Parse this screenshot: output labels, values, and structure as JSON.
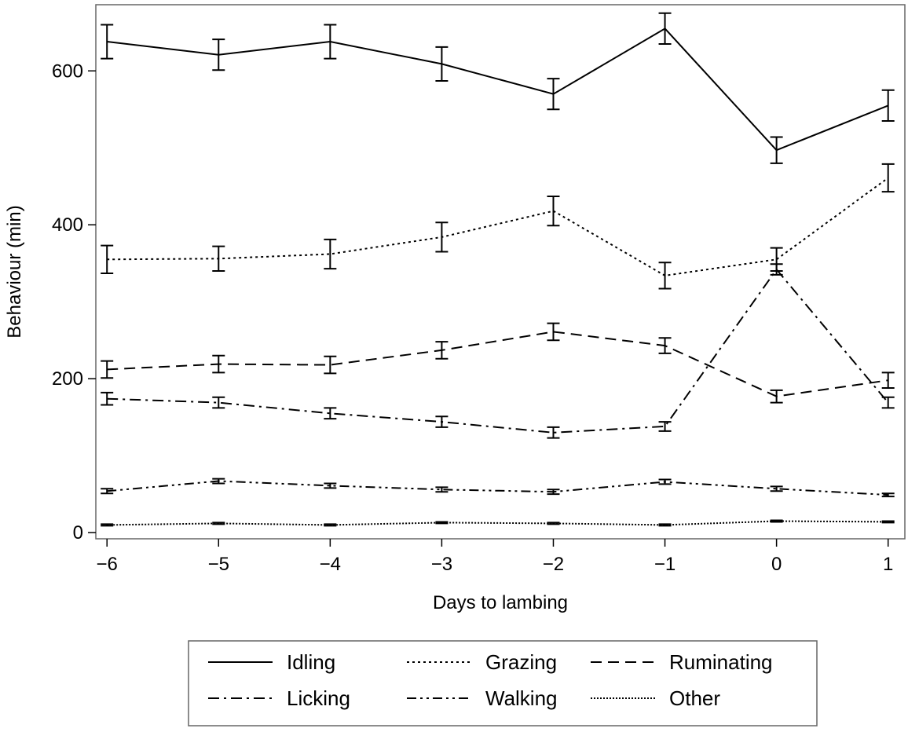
{
  "chart_data": {
    "type": "line",
    "xlabel": "Days to lambing",
    "ylabel": "Behaviour (min)",
    "x": [
      -6,
      -5,
      -4,
      -3,
      -2,
      -1,
      0,
      1
    ],
    "x_tick_labels": [
      "−6",
      "−5",
      "−4",
      "−3",
      "−2",
      "−1",
      "0",
      "1"
    ],
    "xlim": [
      -6.1,
      1.15
    ],
    "ylim": [
      -8,
      686
    ],
    "yticks": [
      0,
      200,
      400,
      600
    ],
    "grid": false,
    "legend_placement": "bottom",
    "series": [
      {
        "name": "Idling",
        "dash": "solid",
        "values": [
          638,
          621,
          638,
          609,
          570,
          655,
          497,
          555
        ],
        "err": [
          22,
          20,
          22,
          22,
          20,
          20,
          17,
          20
        ]
      },
      {
        "name": "Grazing",
        "dash": "dotted",
        "values": [
          355,
          356,
          362,
          384,
          418,
          334,
          355,
          461
        ],
        "err": [
          18,
          16,
          19,
          19,
          19,
          17,
          15,
          18
        ]
      },
      {
        "name": "Ruminating",
        "dash": "dashed",
        "values": [
          212,
          219,
          218,
          237,
          261,
          243,
          177,
          198
        ],
        "err": [
          11,
          11,
          11,
          11,
          11,
          10,
          8,
          10
        ]
      },
      {
        "name": "Licking",
        "dash": "dashdot",
        "values": [
          174,
          169,
          155,
          144,
          130,
          138,
          342,
          169
        ],
        "err": [
          8,
          7,
          7,
          7,
          7,
          6,
          7,
          7
        ]
      },
      {
        "name": "Walking",
        "dash": "dashdotdot",
        "values": [
          54,
          67,
          61,
          56,
          53,
          66,
          57,
          49
        ],
        "err": [
          3,
          3,
          3,
          3,
          3,
          3,
          3,
          2
        ]
      },
      {
        "name": "Other",
        "dash": "densedot",
        "values": [
          10,
          12,
          10,
          13,
          12,
          10,
          15,
          14
        ],
        "err": [
          1,
          1,
          1,
          1,
          1,
          1,
          1,
          1
        ]
      }
    ]
  }
}
